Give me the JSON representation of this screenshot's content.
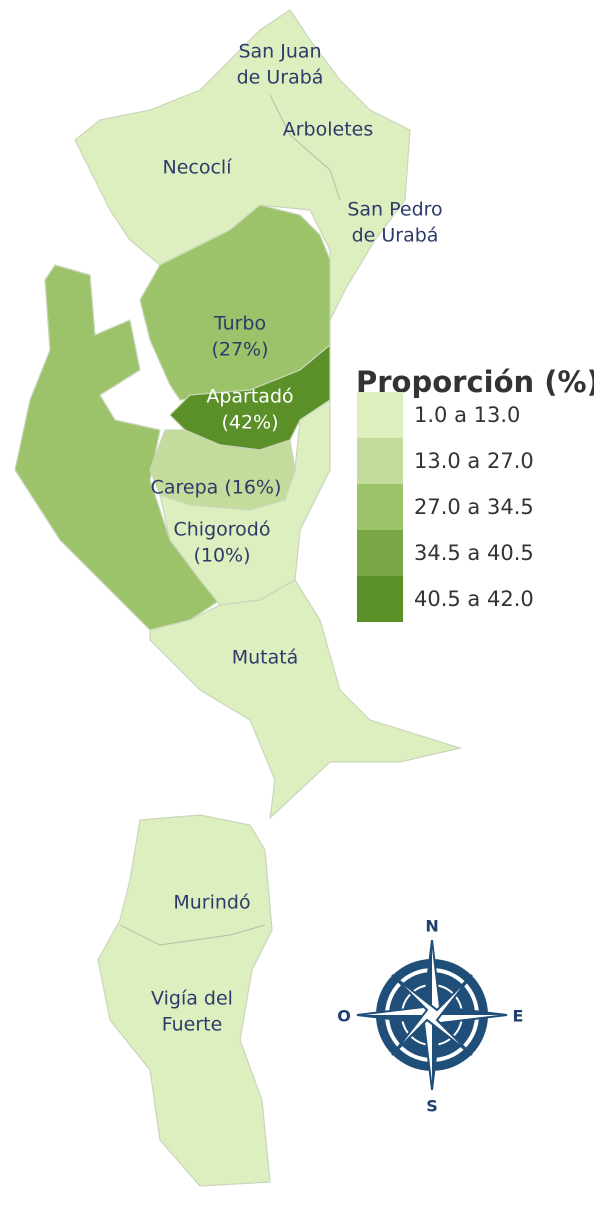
{
  "map": {
    "regions": [
      {
        "class": 0
      },
      {
        "class": 2
      },
      {
        "class": 2
      },
      {
        "class": 4
      },
      {
        "class": 1
      },
      {
        "class": 0
      },
      {
        "class": 0
      },
      {
        "class": 0
      }
    ],
    "labels": [
      {
        "lines": [
          "San Juan",
          "de Urabá"
        ]
      },
      {
        "lines": [
          "Arboletes"
        ]
      },
      {
        "lines": [
          "Necoclí"
        ]
      },
      {
        "lines": [
          "San Pedro",
          "de Urabá"
        ]
      },
      {
        "lines": [
          "Turbo",
          "(27%)"
        ]
      },
      {
        "lines": [
          "Apartadó",
          "(42%)"
        ]
      },
      {
        "lines": [
          "Carepa (16%)"
        ]
      },
      {
        "lines": [
          "Chigorodó",
          "(10%)"
        ]
      },
      {
        "lines": [
          "Mutatá"
        ]
      },
      {
        "lines": [
          "Murindó"
        ]
      },
      {
        "lines": [
          "Vigía del",
          "Fuerte"
        ]
      }
    ],
    "legend": {
      "title": "Proporción (%)",
      "items": [
        {
          "label": "1.0 a 13.0",
          "color": "#deefbf"
        },
        {
          "label": "13.0 a 27.0",
          "color": "#c3db9b"
        },
        {
          "label": "27.0 a 34.5",
          "color": "#9dc36a"
        },
        {
          "label": "34.5 a 40.5",
          "color": "#7aa746"
        },
        {
          "label": "40.5 a 42.0",
          "color": "#5b8f27"
        }
      ]
    },
    "compass": {
      "n": "N",
      "e": "E",
      "s": "S",
      "o": "O"
    }
  }
}
